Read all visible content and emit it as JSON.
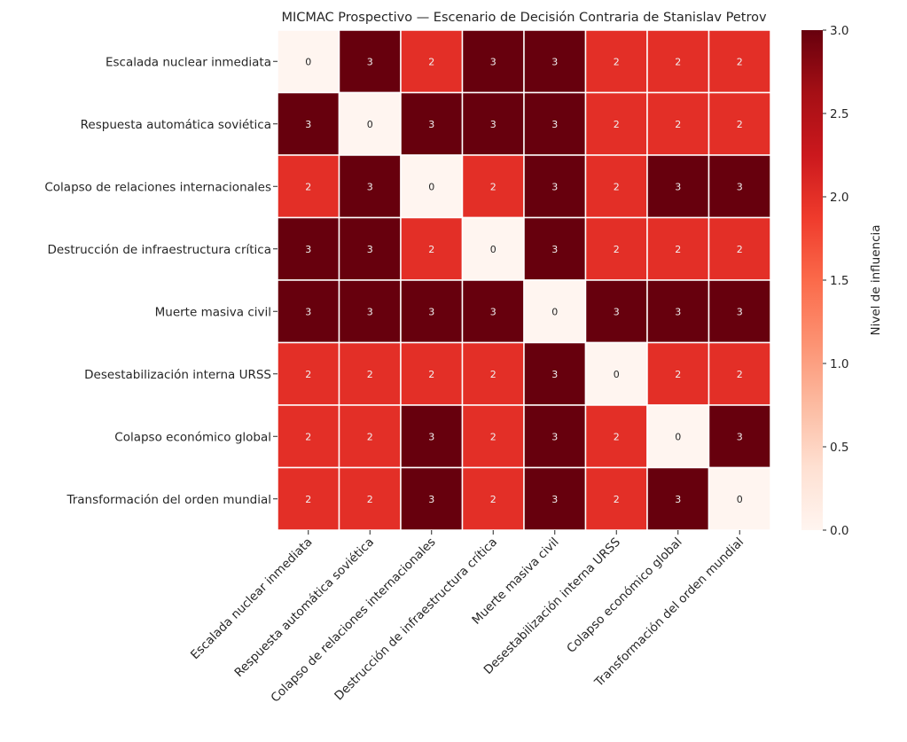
{
  "chart_data": {
    "type": "heatmap",
    "title": "MICMAC Prospectivo — Escenario de Decisión Contraria de Stanislav Petrov",
    "xlabel": "",
    "ylabel": "",
    "row_labels": [
      "Escalada nuclear inmediata",
      "Respuesta automática soviética",
      "Colapso de relaciones internacionales",
      "Destrucción de infraestructura crítica",
      "Muerte masiva civil",
      "Desestabilización interna URSS",
      "Colapso económico global",
      "Transformación del orden mundial"
    ],
    "col_labels": [
      "Escalada nuclear inmediata",
      "Respuesta automática soviética",
      "Colapso de relaciones internacionales",
      "Destrucción de infraestructura crítica",
      "Muerte masiva civil",
      "Desestabilización interna URSS",
      "Colapso económico global",
      "Transformación del orden mundial"
    ],
    "values": [
      [
        0,
        3,
        2,
        3,
        3,
        2,
        2,
        2
      ],
      [
        3,
        0,
        3,
        3,
        3,
        2,
        2,
        2
      ],
      [
        2,
        3,
        0,
        2,
        3,
        2,
        3,
        3
      ],
      [
        3,
        3,
        2,
        0,
        3,
        2,
        2,
        2
      ],
      [
        3,
        3,
        3,
        3,
        0,
        3,
        3,
        3
      ],
      [
        2,
        2,
        2,
        2,
        3,
        0,
        2,
        2
      ],
      [
        2,
        2,
        3,
        2,
        3,
        2,
        0,
        3
      ],
      [
        2,
        2,
        3,
        2,
        3,
        2,
        3,
        0
      ]
    ],
    "colormap": "Reds",
    "vmin": 0,
    "vmax": 3,
    "annotations": true,
    "colorbar": {
      "label": "Nivel de influencia",
      "ticks": [
        0.0,
        0.5,
        1.0,
        1.5,
        2.0,
        2.5,
        3.0
      ],
      "tick_labels": [
        "0.0",
        "0.5",
        "1.0",
        "1.5",
        "2.0",
        "2.5",
        "3.0"
      ],
      "placement": "right"
    },
    "colors": {
      "value_0": "#fff5f0",
      "value_2": "#e32f27",
      "value_3": "#67000d",
      "annotation_dark": "#262626",
      "annotation_light": "#f2f2f2",
      "grid_line": "#ffffff"
    }
  }
}
